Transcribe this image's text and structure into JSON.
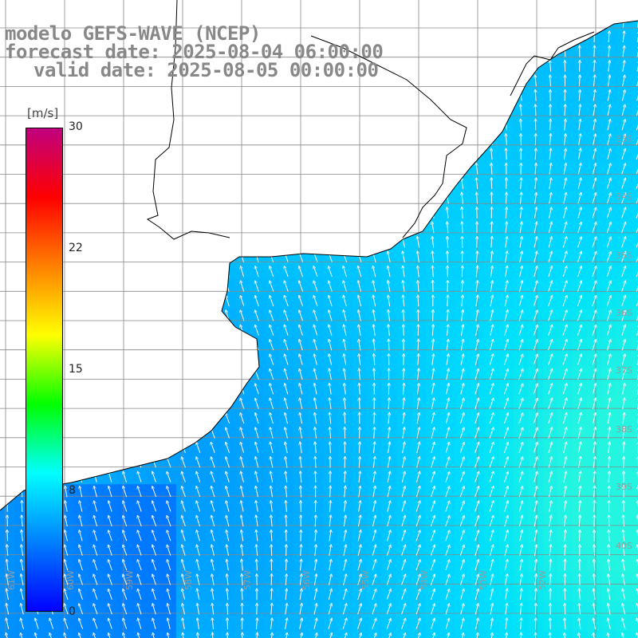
{
  "title": {
    "line1": "modelo GEFS-WAVE (NCEP)",
    "line2": "forecast date: 2025-08-04 06:00:00",
    "line3": "valid date: 2025-08-05 00:00:00"
  },
  "colorbar": {
    "units": "[m/s]",
    "min": 0,
    "max": 30,
    "ticks": [
      "30",
      "22",
      "15",
      "8",
      "0"
    ],
    "tick_values": [
      30,
      22,
      15,
      8,
      0
    ],
    "gradient": [
      "#0000ff",
      "#0080ff",
      "#00ffff",
      "#00ff00",
      "#ffff00",
      "#ff8000",
      "#ff0000",
      "#c0007f"
    ]
  },
  "map": {
    "land_color": "#ffffff",
    "coast_color": "#000000",
    "grid_color": "#888888",
    "lon_labels": [
      "61W",
      "60W",
      "59W",
      "58W",
      "57W",
      "56W",
      "55W",
      "54W",
      "53W",
      "52W"
    ],
    "lat_labels": [
      "33S",
      "34S",
      "35S",
      "36S",
      "37S",
      "38S",
      "39S",
      "40S"
    ]
  }
}
